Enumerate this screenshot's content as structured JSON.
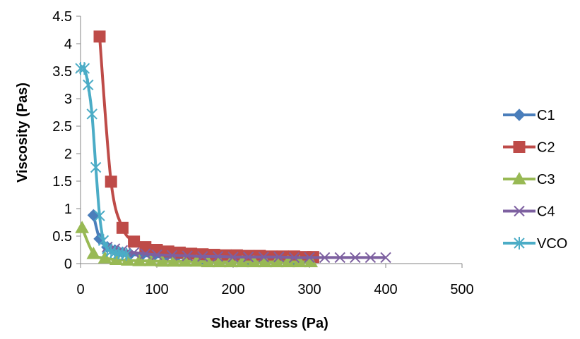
{
  "chart_data": {
    "type": "line",
    "title": "",
    "xlabel": "Shear Stress (Pa)",
    "ylabel": "Viscosity (Pas)",
    "xlim": [
      0,
      500
    ],
    "ylim": [
      0,
      4.5
    ],
    "xticks": [
      0,
      100,
      200,
      300,
      400,
      500
    ],
    "yticks": [
      0,
      0.5,
      1,
      1.5,
      2,
      2.5,
      3,
      3.5,
      4,
      4.5
    ],
    "xtick_labels": [
      "0",
      "100",
      "200",
      "300",
      "400",
      "500"
    ],
    "ytick_labels": [
      "0",
      "0.5",
      "1",
      "1.5",
      "2",
      "2.5",
      "3",
      "3.5",
      "4",
      "4.5"
    ],
    "grid": false,
    "legend_position": "right",
    "series": [
      {
        "name": "C1",
        "color": "#4a7ebb",
        "marker": "diamond",
        "x": [
          17,
          25,
          35,
          45,
          55,
          65,
          80,
          95,
          110,
          125,
          140,
          160,
          180,
          200,
          220,
          240,
          260,
          280,
          300
        ],
        "y": [
          0.88,
          0.45,
          0.3,
          0.24,
          0.2,
          0.17,
          0.15,
          0.13,
          0.12,
          0.11,
          0.1,
          0.09,
          0.09,
          0.08,
          0.08,
          0.08,
          0.07,
          0.07,
          0.07
        ]
      },
      {
        "name": "C2",
        "color": "#be4b48",
        "marker": "square",
        "x": [
          25,
          40,
          55,
          70,
          85,
          100,
          115,
          130,
          145,
          160,
          175,
          190,
          205,
          220,
          235,
          250,
          265,
          280,
          295,
          305
        ],
        "y": [
          4.13,
          1.49,
          0.65,
          0.4,
          0.3,
          0.25,
          0.22,
          0.2,
          0.18,
          0.17,
          0.16,
          0.15,
          0.15,
          0.14,
          0.14,
          0.13,
          0.13,
          0.13,
          0.12,
          0.12
        ]
      },
      {
        "name": "C3",
        "color": "#98b954",
        "marker": "triangle",
        "x": [
          2,
          17,
          32,
          47,
          62,
          77,
          92,
          107,
          122,
          137,
          152,
          167,
          182,
          197,
          212,
          227,
          242,
          257,
          272,
          287,
          302
        ],
        "y": [
          0.65,
          0.18,
          0.1,
          0.07,
          0.06,
          0.05,
          0.05,
          0.04,
          0.04,
          0.04,
          0.04,
          0.03,
          0.03,
          0.03,
          0.03,
          0.03,
          0.03,
          0.03,
          0.03,
          0.03,
          0.03
        ]
      },
      {
        "name": "C4",
        "color": "#7d60a0",
        "marker": "x",
        "x": [
          35,
          45,
          55,
          70,
          85,
          100,
          120,
          140,
          160,
          180,
          200,
          220,
          240,
          260,
          280,
          300,
          320,
          340,
          360,
          380,
          400
        ],
        "y": [
          0.3,
          0.27,
          0.24,
          0.2,
          0.18,
          0.16,
          0.15,
          0.14,
          0.13,
          0.13,
          0.12,
          0.12,
          0.12,
          0.12,
          0.11,
          0.11,
          0.11,
          0.11,
          0.11,
          0.11,
          0.11
        ]
      },
      {
        "name": "VCO",
        "color": "#4bacc6",
        "marker": "star",
        "x": [
          0,
          5,
          10,
          15,
          20,
          25,
          30,
          35,
          40,
          45,
          50,
          55,
          60
        ],
        "y": [
          3.55,
          3.55,
          3.25,
          2.72,
          1.75,
          0.87,
          0.42,
          0.27,
          0.22,
          0.2,
          0.19,
          0.18,
          0.17
        ]
      }
    ]
  }
}
